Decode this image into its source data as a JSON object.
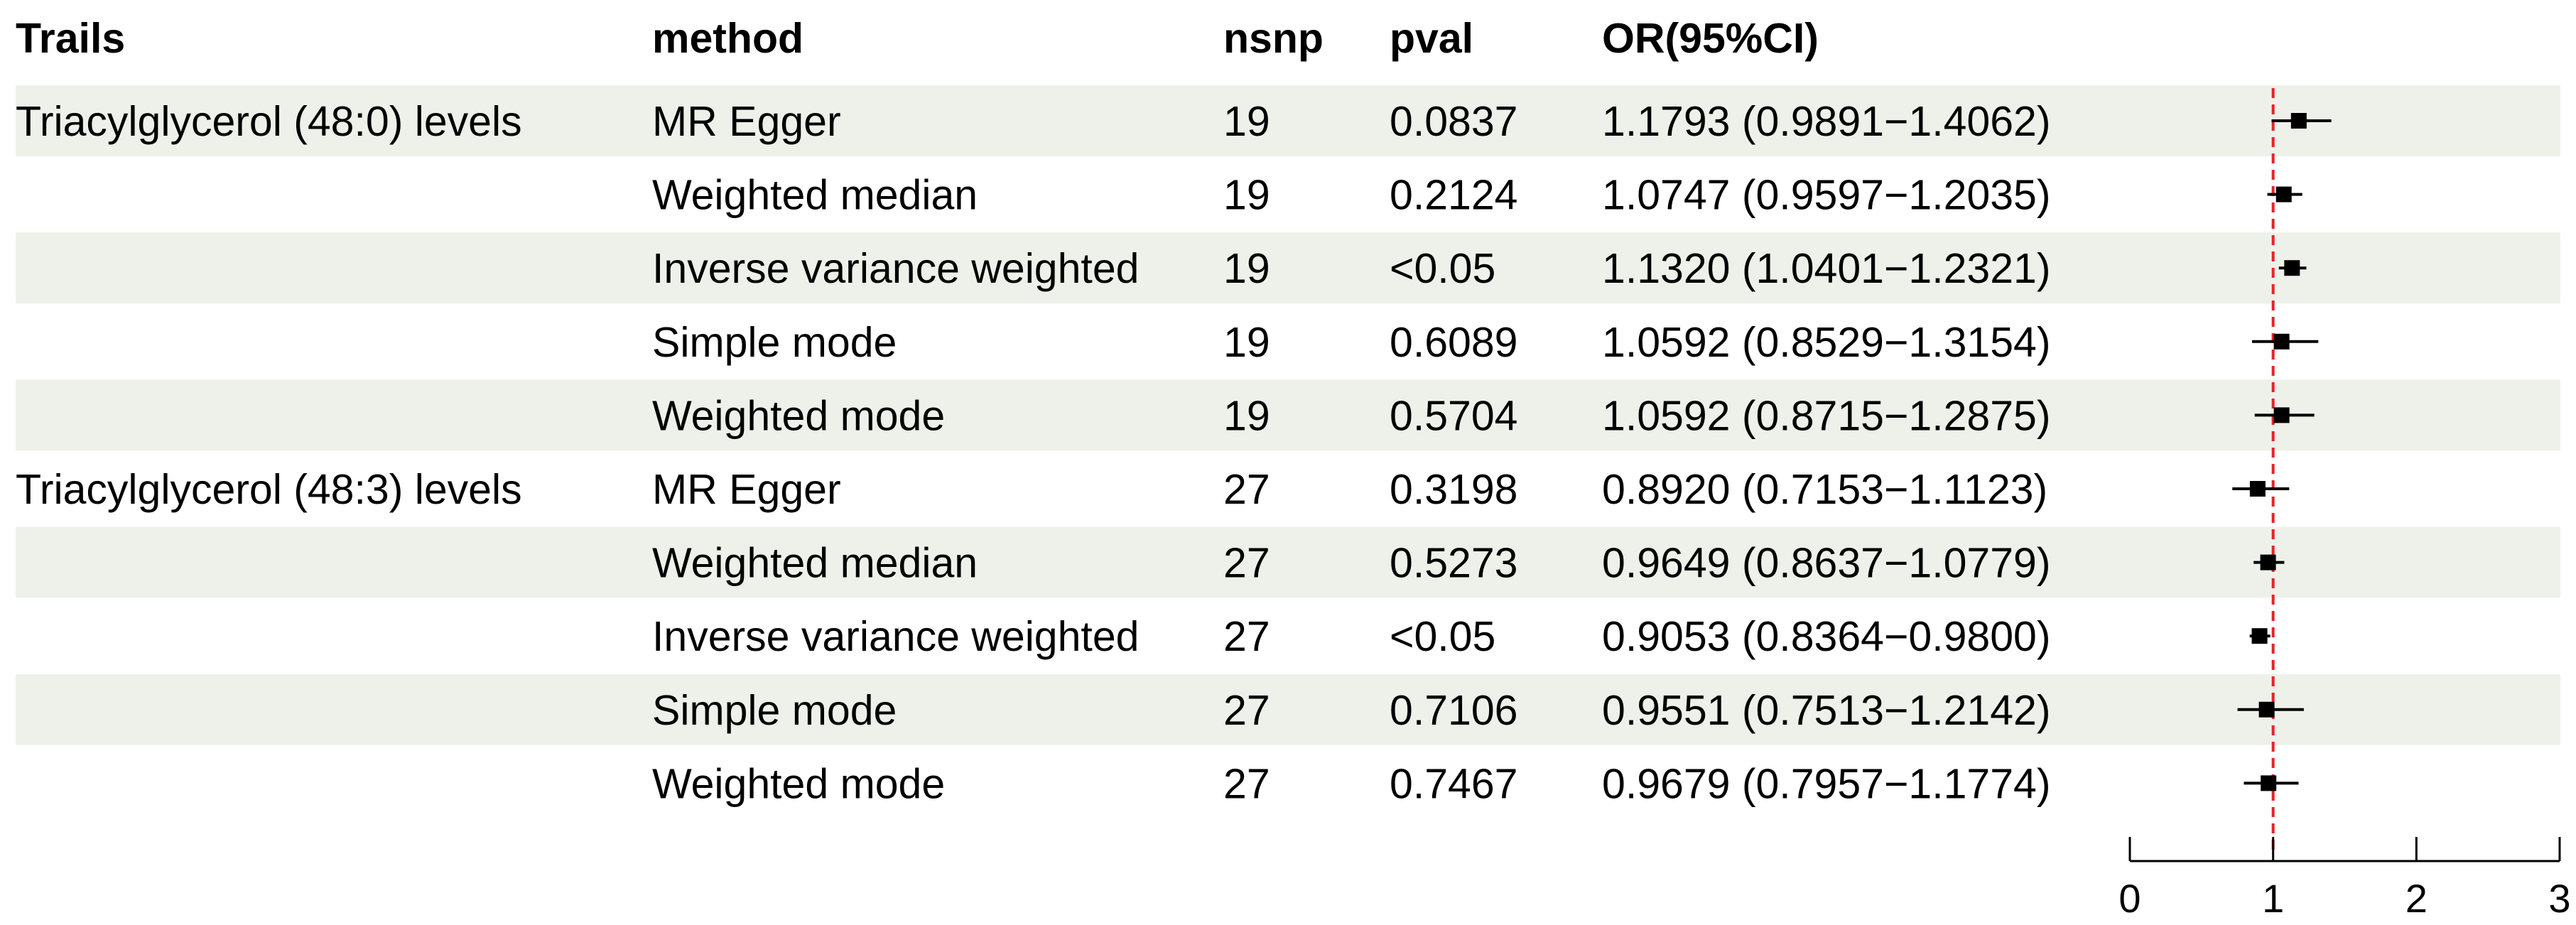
{
  "table": {
    "headers": {
      "trait": "Trails",
      "method": "method",
      "nsnp": "nsnp",
      "pval": "pval",
      "or_ci": "OR(95%CI)"
    },
    "rows": [
      {
        "trait": "Triacylglycerol (48:0) levels",
        "method": "MR Egger",
        "nsnp": "19",
        "pval": "0.0837",
        "or_ci": "1.1793 (0.9891−1.4062)"
      },
      {
        "trait": "",
        "method": "Weighted median",
        "nsnp": "19",
        "pval": "0.2124",
        "or_ci": "1.0747 (0.9597−1.2035)"
      },
      {
        "trait": "",
        "method": "Inverse variance weighted",
        "nsnp": "19",
        "pval": "<0.05",
        "or_ci": "1.1320 (1.0401−1.2321)"
      },
      {
        "trait": "",
        "method": "Simple mode",
        "nsnp": "19",
        "pval": "0.6089",
        "or_ci": "1.0592 (0.8529−1.3154)"
      },
      {
        "trait": "",
        "method": "Weighted mode",
        "nsnp": "19",
        "pval": "0.5704",
        "or_ci": "1.0592 (0.8715−1.2875)"
      },
      {
        "trait": "Triacylglycerol (48:3) levels",
        "method": "MR Egger",
        "nsnp": "27",
        "pval": "0.3198",
        "or_ci": "0.8920 (0.7153−1.1123)"
      },
      {
        "trait": "",
        "method": "Weighted median",
        "nsnp": "27",
        "pval": "0.5273",
        "or_ci": "0.9649 (0.8637−1.0779)"
      },
      {
        "trait": "",
        "method": "Inverse variance weighted",
        "nsnp": "27",
        "pval": "<0.05",
        "or_ci": "0.9053 (0.8364−0.9800)"
      },
      {
        "trait": "",
        "method": "Simple mode",
        "nsnp": "27",
        "pval": "0.7106",
        "or_ci": "0.9551 (0.7513−1.2142)"
      },
      {
        "trait": "",
        "method": "Weighted mode",
        "nsnp": "27",
        "pval": "0.7467",
        "or_ci": "0.9679 (0.7957−1.1774)"
      }
    ]
  },
  "chart_data": {
    "type": "scatter",
    "subtype": "forest",
    "title": "",
    "xlabel": "",
    "ylabel": "",
    "xlim": [
      0,
      3
    ],
    "xticks": [
      "0",
      "1",
      "2",
      "3"
    ],
    "reference_line": 1,
    "reference_line_color": "#e8202a",
    "row_shading": "#eef1ea",
    "points": [
      {
        "or": 1.1793,
        "lo": 0.9891,
        "hi": 1.4062
      },
      {
        "or": 1.0747,
        "lo": 0.9597,
        "hi": 1.2035
      },
      {
        "or": 1.132,
        "lo": 1.0401,
        "hi": 1.2321
      },
      {
        "or": 1.0592,
        "lo": 0.8529,
        "hi": 1.3154
      },
      {
        "or": 1.0592,
        "lo": 0.8715,
        "hi": 1.2875
      },
      {
        "or": 0.892,
        "lo": 0.7153,
        "hi": 1.1123
      },
      {
        "or": 0.9649,
        "lo": 0.8637,
        "hi": 1.0779
      },
      {
        "or": 0.9053,
        "lo": 0.8364,
        "hi": 0.98
      },
      {
        "or": 0.9551,
        "lo": 0.7513,
        "hi": 1.2142
      },
      {
        "or": 0.9679,
        "lo": 0.7957,
        "hi": 1.1774
      }
    ]
  }
}
